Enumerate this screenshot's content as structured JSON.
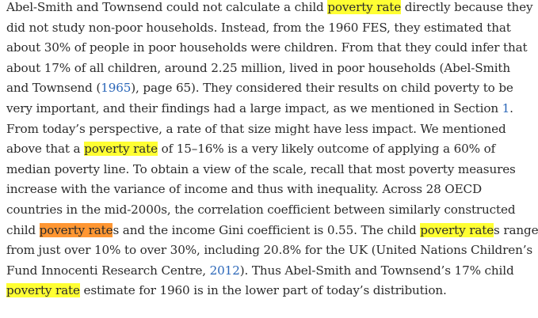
{
  "paragraph": {
    "l1": {
      "a": "Abel-Smith and Townsend could not calculate a child ",
      "hl": "poverty rate",
      "b": " directly because they"
    },
    "l2": "did not study non-poor households. Instead, from the 1960 FES, they estimated that",
    "l3": "about 30% of people in poor households were children. From that they could infer that",
    "l4": "about 17% of all children, around 2.25 million, lived in poor households (Abel-Smith",
    "l5": {
      "a": "and Townsend (",
      "link": "1965",
      "b": "), page 65). They considered their results on child poverty to be"
    },
    "l6": {
      "a": "very important, and their findings had a large impact, as we mentioned in Section ",
      "link": "1",
      "b": "."
    },
    "l7": "From today’s perspective, a rate of that size might have less impact. We mentioned",
    "l8": {
      "a": "above that a ",
      "hl": "poverty rate",
      "b": " of 15–16% is a very likely outcome of applying a 60% of"
    },
    "l9": "median poverty line. To obtain a view of the scale, recall that most poverty measures",
    "l10": "increase with the variance of income and thus with inequality. Across 28 OECD",
    "l11": "countries in the mid-2000s, the correlation coefficient between similarly constructed",
    "l12": {
      "a": "child ",
      "hl_active": "poverty rate",
      "b": "s and the income Gini coefficient is 0.55. The child ",
      "hl": "poverty rate",
      "c": "s range"
    },
    "l13": "from just over 10% to over 30%, including 20.8% for the UK (United Nations Children’s",
    "l14": {
      "a": "Fund Innocenti Research Centre, ",
      "link": "2012",
      "b": "). Thus Abel-Smith and Townsend’s 17% child"
    },
    "l15": {
      "hl": "poverty rate",
      "b": " estimate for 1960 is in the lower part of today’s distribution."
    }
  },
  "colors": {
    "highlight": "#ffff33",
    "active_highlight": "#ff9632",
    "link": "#2a66b8",
    "text": "#2b2b2b"
  }
}
